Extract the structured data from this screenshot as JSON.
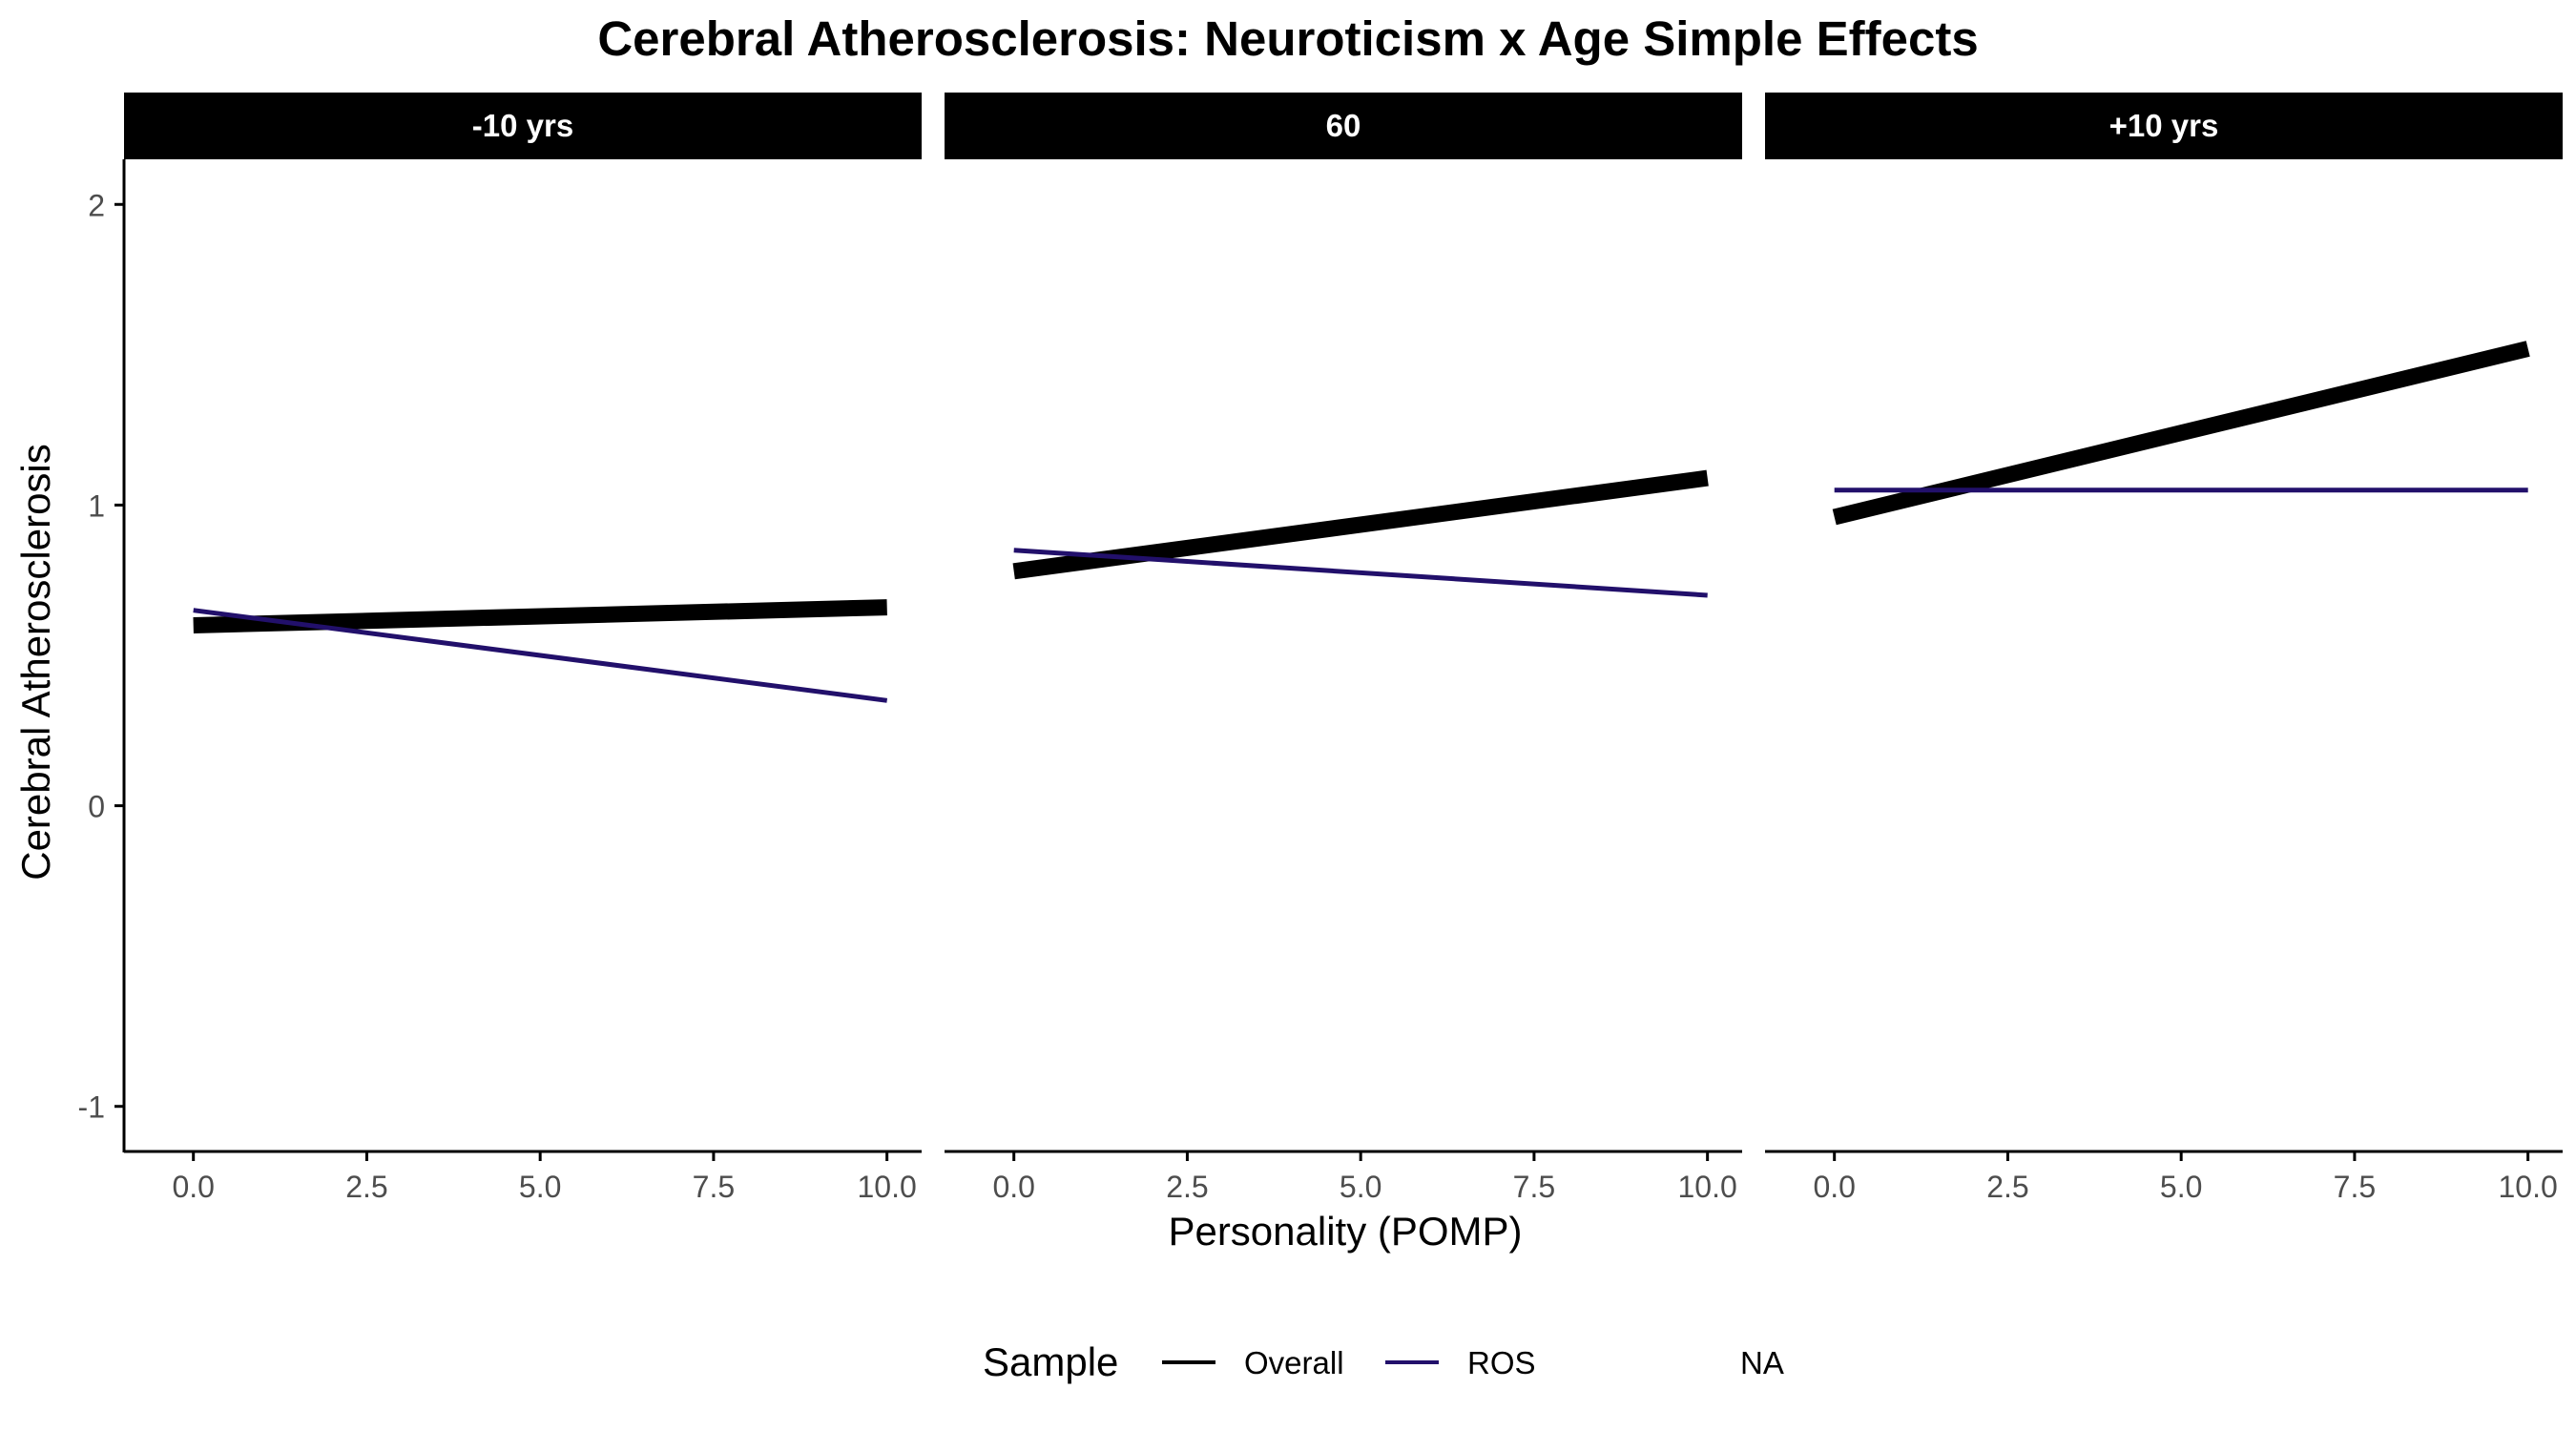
{
  "chart_data": {
    "type": "line",
    "title": "Cerebral Atherosclerosis: Neuroticism x Age Simple Effects",
    "xlabel": "Personality (POMP)",
    "ylabel": "Cerebral Atherosclerosis",
    "xlim": [
      -1,
      10.5
    ],
    "ylim": [
      -1.15,
      2.15
    ],
    "x_ticks": [
      0,
      2.5,
      5,
      7.5,
      10
    ],
    "x_tick_labels": [
      "0.0",
      "2.5",
      "5.0",
      "7.5",
      "10.0"
    ],
    "y_ticks": [
      -1,
      0,
      1,
      2
    ],
    "y_tick_labels": [
      "-1",
      "0",
      "1",
      "2"
    ],
    "grid": false,
    "legend": {
      "title": "Sample",
      "position": "bottom",
      "entries": [
        {
          "label": "Overall",
          "color": "#000000"
        },
        {
          "label": "ROS",
          "color": "#22106b"
        },
        {
          "label": "NA",
          "color": null
        }
      ]
    },
    "panels": [
      {
        "label": "-10 yrs",
        "series": [
          {
            "name": "Overall",
            "color": "#000000",
            "x": [
              0,
              10
            ],
            "y": [
              0.6,
              0.66
            ]
          },
          {
            "name": "ROS",
            "color": "#22106b",
            "x": [
              0,
              10
            ],
            "y": [
              0.65,
              0.35
            ]
          }
        ]
      },
      {
        "label": "60",
        "series": [
          {
            "name": "Overall",
            "color": "#000000",
            "x": [
              0,
              10
            ],
            "y": [
              0.78,
              1.09
            ]
          },
          {
            "name": "ROS",
            "color": "#22106b",
            "x": [
              0,
              10
            ],
            "y": [
              0.85,
              0.7
            ]
          }
        ]
      },
      {
        "label": "+10 yrs",
        "series": [
          {
            "name": "Overall",
            "color": "#000000",
            "x": [
              0,
              10
            ],
            "y": [
              0.96,
              1.52
            ]
          },
          {
            "name": "ROS",
            "color": "#22106b",
            "x": [
              0,
              10
            ],
            "y": [
              1.05,
              1.05
            ]
          }
        ]
      }
    ]
  }
}
